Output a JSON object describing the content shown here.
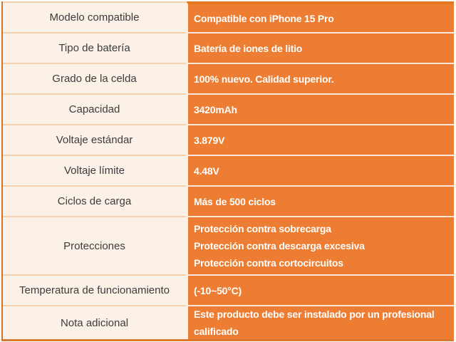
{
  "page": {
    "background_color": "#ffffff",
    "type": "battery-specification-table"
  },
  "table": {
    "accent_orange": "#ED7D32",
    "light_cell_background": "#FCF1E7",
    "outer_border_color": "#D3742E",
    "light_divider_color": "#F4D1AC",
    "value_divider_color": "#F8E9DA",
    "label_text_color": "#3C3C3C",
    "value_text_color": "#FFFFFF",
    "rows": [
      {
        "label": "Modelo compatible",
        "value": "Compatible con iPhone 15 Pro"
      },
      {
        "label": "Tipo de batería",
        "value": "Batería de iones de litio"
      },
      {
        "label": "Grado de la celda",
        "value": "100% nuevo. Calidad superior."
      },
      {
        "label": "Capacidad",
        "value": "3420mAh"
      },
      {
        "label": "Voltaje estándar",
        "value": "3.879V"
      },
      {
        "label": "Voltaje límite",
        "value": "4.48V"
      },
      {
        "label": "Ciclos de carga",
        "value": "Más de 500 ciclos"
      },
      {
        "label": "Protecciones",
        "value": "Protección contra sobrecarga\nProtección contra descarga excesiva\nProtección contra cortocircuitos"
      },
      {
        "label": "Temperatura de funcionamiento",
        "value": "(-10~50°C)"
      },
      {
        "label": "Nota adicional",
        "value": "Este producto debe ser instalado por un profesional\ncalificado"
      }
    ]
  }
}
